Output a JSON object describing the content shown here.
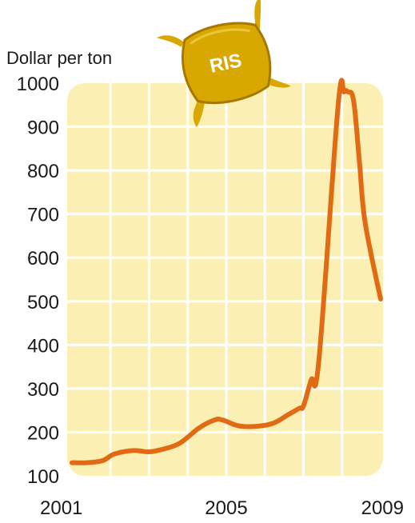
{
  "chart_data": {
    "type": "line",
    "ylabel": "Dollar per ton",
    "xlabel": "",
    "title": "",
    "ylim": [
      100,
      1000
    ],
    "xlim": [
      2001,
      2009
    ],
    "y_ticks": [
      "100",
      "200",
      "300",
      "400",
      "500",
      "600",
      "700",
      "800",
      "900",
      "1000"
    ],
    "x_tick_labels": [
      "2001",
      "2005",
      "2009"
    ],
    "grid": true,
    "series": [
      {
        "x": [
          2001.0,
          2001.4,
          2001.8,
          2002.1,
          2002.6,
          2003.0,
          2003.4,
          2003.8,
          2004.3,
          2004.7,
          2004.9,
          2005.3,
          2005.7,
          2006.2,
          2006.6,
          2006.9,
          2007.0,
          2007.2,
          2007.4,
          2007.9,
          2008.05,
          2008.15,
          2008.3,
          2008.45,
          2008.6,
          2009.0
        ],
        "y": [
          130,
          130,
          135,
          150,
          158,
          155,
          162,
          175,
          210,
          228,
          228,
          215,
          213,
          220,
          240,
          255,
          260,
          320,
          365,
          950,
          980,
          980,
          960,
          820,
          680,
          505
        ]
      }
    ],
    "colors": {
      "line": "#e06b14",
      "plot_background": "#fcefb4",
      "grid": "#ffffff"
    }
  },
  "illustration": {
    "label": "RIS",
    "icon": "rice-sack-icon",
    "colors": {
      "body": "#d9a800",
      "dark": "#a67800"
    }
  }
}
